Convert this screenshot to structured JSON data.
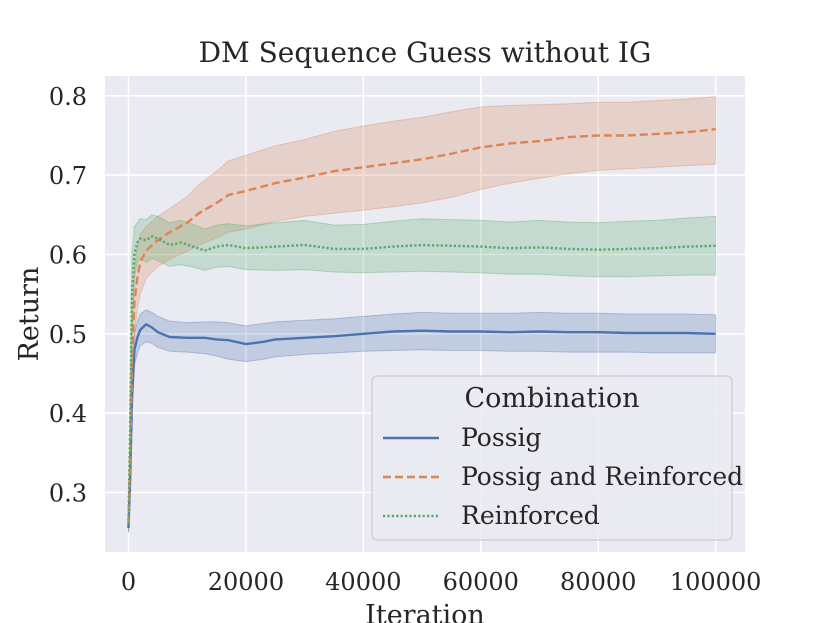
{
  "chart_data": {
    "type": "line",
    "title": "DM Sequence Guess without IG",
    "xlabel": "Iteration",
    "ylabel": "Return",
    "xlim": [
      -4000,
      105000
    ],
    "ylim": [
      0.225,
      0.825
    ],
    "xticks": [
      0,
      20000,
      40000,
      60000,
      80000,
      100000
    ],
    "xtick_labels": [
      "0",
      "20000",
      "40000",
      "60000",
      "80000",
      "100000"
    ],
    "yticks": [
      0.3,
      0.4,
      0.5,
      0.6,
      0.7,
      0.8
    ],
    "ytick_labels": [
      "0.3",
      "0.4",
      "0.5",
      "0.6",
      "0.7",
      "0.8"
    ],
    "grid": true,
    "legend": {
      "title": "Combination",
      "placement": "lower-right"
    },
    "series": [
      {
        "name": "Possig",
        "color": "#4c72b0",
        "dash": "solid",
        "x": [
          0,
          300,
          600,
          1000,
          1500,
          2000,
          3000,
          4000,
          5000,
          7000,
          10000,
          13000,
          15000,
          17000,
          20000,
          23000,
          25000,
          30000,
          35000,
          40000,
          45000,
          50000,
          55000,
          60000,
          65000,
          70000,
          75000,
          80000,
          85000,
          90000,
          95000,
          100000
        ],
        "y": [
          0.255,
          0.32,
          0.42,
          0.48,
          0.495,
          0.505,
          0.512,
          0.508,
          0.502,
          0.496,
          0.495,
          0.495,
          0.493,
          0.492,
          0.487,
          0.49,
          0.493,
          0.495,
          0.497,
          0.5,
          0.503,
          0.504,
          0.503,
          0.503,
          0.502,
          0.503,
          0.502,
          0.502,
          0.501,
          0.501,
          0.501,
          0.5
        ],
        "lower": [
          0.25,
          0.3,
          0.4,
          0.46,
          0.475,
          0.485,
          0.49,
          0.488,
          0.483,
          0.478,
          0.477,
          0.475,
          0.472,
          0.468,
          0.465,
          0.468,
          0.471,
          0.474,
          0.476,
          0.478,
          0.479,
          0.48,
          0.479,
          0.479,
          0.478,
          0.478,
          0.477,
          0.477,
          0.477,
          0.476,
          0.476,
          0.476
        ],
        "upper": [
          0.26,
          0.34,
          0.44,
          0.5,
          0.515,
          0.525,
          0.53,
          0.527,
          0.522,
          0.516,
          0.514,
          0.515,
          0.515,
          0.514,
          0.51,
          0.513,
          0.515,
          0.517,
          0.519,
          0.522,
          0.525,
          0.527,
          0.526,
          0.526,
          0.526,
          0.527,
          0.526,
          0.526,
          0.525,
          0.525,
          0.525,
          0.524
        ]
      },
      {
        "name": "Possig and Reinforced",
        "color": "#dd8452",
        "dash": "dashed",
        "x": [
          0,
          300,
          600,
          1000,
          1500,
          2000,
          3000,
          5000,
          7000,
          10000,
          12000,
          15000,
          17000,
          20000,
          25000,
          30000,
          35000,
          40000,
          45000,
          50000,
          55000,
          60000,
          65000,
          70000,
          75000,
          80000,
          85000,
          90000,
          95000,
          100000
        ],
        "y": [
          0.26,
          0.35,
          0.46,
          0.54,
          0.57,
          0.59,
          0.605,
          0.618,
          0.628,
          0.64,
          0.652,
          0.665,
          0.675,
          0.68,
          0.69,
          0.697,
          0.705,
          0.71,
          0.715,
          0.72,
          0.727,
          0.735,
          0.74,
          0.743,
          0.748,
          0.75,
          0.75,
          0.752,
          0.754,
          0.758
        ],
        "lower": [
          0.25,
          0.32,
          0.42,
          0.5,
          0.53,
          0.55,
          0.57,
          0.585,
          0.594,
          0.604,
          0.612,
          0.621,
          0.628,
          0.632,
          0.642,
          0.648,
          0.652,
          0.656,
          0.66,
          0.665,
          0.672,
          0.682,
          0.69,
          0.696,
          0.702,
          0.706,
          0.708,
          0.71,
          0.712,
          0.714
        ],
        "upper": [
          0.27,
          0.38,
          0.5,
          0.58,
          0.61,
          0.625,
          0.635,
          0.648,
          0.658,
          0.673,
          0.688,
          0.705,
          0.718,
          0.725,
          0.737,
          0.745,
          0.755,
          0.762,
          0.768,
          0.773,
          0.78,
          0.786,
          0.788,
          0.789,
          0.79,
          0.792,
          0.792,
          0.794,
          0.796,
          0.799
        ]
      },
      {
        "name": "Reinforced",
        "color": "#55a868",
        "dash": "dotted",
        "x": [
          0,
          300,
          600,
          1000,
          1500,
          2000,
          3000,
          4000,
          5000,
          7000,
          9000,
          11000,
          13000,
          15000,
          17000,
          20000,
          25000,
          30000,
          35000,
          40000,
          45000,
          50000,
          55000,
          60000,
          65000,
          70000,
          75000,
          80000,
          85000,
          90000,
          95000,
          100000
        ],
        "y": [
          0.26,
          0.4,
          0.55,
          0.6,
          0.615,
          0.62,
          0.618,
          0.623,
          0.62,
          0.612,
          0.615,
          0.61,
          0.605,
          0.61,
          0.612,
          0.608,
          0.61,
          0.612,
          0.607,
          0.607,
          0.61,
          0.612,
          0.611,
          0.61,
          0.608,
          0.609,
          0.607,
          0.606,
          0.607,
          0.608,
          0.61,
          0.611
        ],
        "lower": [
          0.25,
          0.37,
          0.5,
          0.57,
          0.59,
          0.595,
          0.59,
          0.595,
          0.592,
          0.585,
          0.587,
          0.584,
          0.58,
          0.584,
          0.585,
          0.581,
          0.58,
          0.581,
          0.578,
          0.577,
          0.578,
          0.579,
          0.578,
          0.577,
          0.575,
          0.575,
          0.573,
          0.572,
          0.572,
          0.573,
          0.574,
          0.574
        ],
        "upper": [
          0.27,
          0.43,
          0.6,
          0.635,
          0.64,
          0.645,
          0.644,
          0.65,
          0.648,
          0.64,
          0.643,
          0.638,
          0.632,
          0.637,
          0.639,
          0.636,
          0.64,
          0.643,
          0.637,
          0.638,
          0.642,
          0.645,
          0.644,
          0.643,
          0.641,
          0.643,
          0.641,
          0.64,
          0.642,
          0.643,
          0.646,
          0.648
        ]
      }
    ]
  }
}
